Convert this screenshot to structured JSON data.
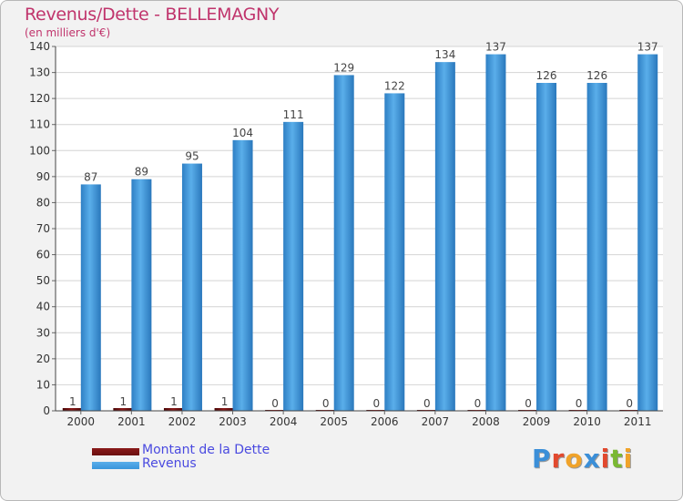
{
  "chart_data": {
    "type": "bar",
    "title": "Revenus/Dette - BELLEMAGNY",
    "subtitle": "(en milliers d'€)",
    "categories": [
      "2000",
      "2001",
      "2002",
      "2003",
      "2004",
      "2005",
      "2006",
      "2007",
      "2008",
      "2009",
      "2010",
      "2011"
    ],
    "series": [
      {
        "name": "Montant de la Dette",
        "color": "#6b0f0f",
        "values": [
          1,
          1,
          1,
          1,
          0,
          0,
          0,
          0,
          0,
          0,
          0,
          0
        ]
      },
      {
        "name": "Revenus",
        "color": "#3a95dc",
        "values": [
          87,
          89,
          95,
          104,
          111,
          129,
          122,
          134,
          137,
          126,
          126,
          137
        ]
      }
    ],
    "ylim": [
      0,
      140
    ],
    "yticks": [
      0,
      10,
      20,
      30,
      40,
      50,
      60,
      70,
      80,
      90,
      100,
      110,
      120,
      130,
      140
    ],
    "grid": true,
    "legend_position": "bottom-left"
  },
  "logo": {
    "text": "Proxiti",
    "letters": [
      {
        "ch": "P",
        "color": "#3b8fd8"
      },
      {
        "ch": "r",
        "color": "#e2492e"
      },
      {
        "ch": "o",
        "color": "#f0a32a"
      },
      {
        "ch": "x",
        "color": "#3b8fd8"
      },
      {
        "ch": "i",
        "color": "#e2492e"
      },
      {
        "ch": "t",
        "color": "#7ab833"
      },
      {
        "ch": "i",
        "color": "#f0a32a"
      }
    ]
  }
}
